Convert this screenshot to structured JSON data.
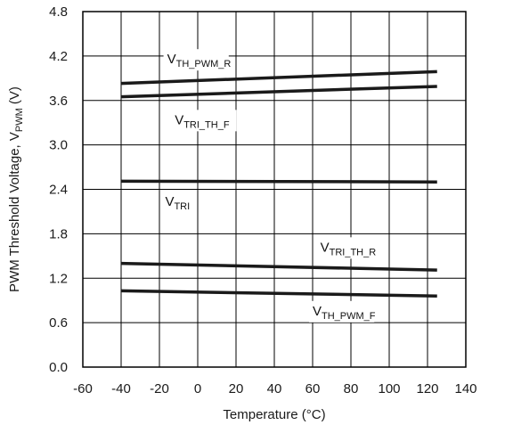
{
  "chart_data": {
    "type": "line",
    "xlabel": "Temperature (°C)",
    "ylabel_main": "PWM Threshold Voltage, V",
    "ylabel_sub": "PWM",
    "ylabel_unit": " (V)",
    "xlim": [
      -60,
      140
    ],
    "ylim": [
      0,
      4.8
    ],
    "x_ticks": [
      -60,
      -40,
      -20,
      0,
      20,
      40,
      60,
      80,
      100,
      120,
      140
    ],
    "y_ticks": [
      "0.0",
      "0.6",
      "1.2",
      "1.8",
      "2.4",
      "3.0",
      "3.6",
      "4.2",
      "4.8"
    ],
    "grid": true,
    "series": [
      {
        "name_main": "V",
        "name_sub": "TH_PWM_R",
        "x": [
          -40,
          125
        ],
        "y": [
          3.83,
          3.99
        ]
      },
      {
        "name_main": "V",
        "name_sub": "TRI_TH_F",
        "x": [
          -40,
          125
        ],
        "y": [
          3.65,
          3.79
        ]
      },
      {
        "name_main": "V",
        "name_sub": "TRI",
        "x": [
          -40,
          125
        ],
        "y": [
          2.51,
          2.5
        ]
      },
      {
        "name_main": "V",
        "name_sub": "TRI_TH_R",
        "x": [
          -40,
          125
        ],
        "y": [
          1.4,
          1.31
        ]
      },
      {
        "name_main": "V",
        "name_sub": "TH_PWM_F",
        "x": [
          -40,
          125
        ],
        "y": [
          1.03,
          0.96
        ]
      }
    ],
    "line_color": "#1a1a1a"
  }
}
